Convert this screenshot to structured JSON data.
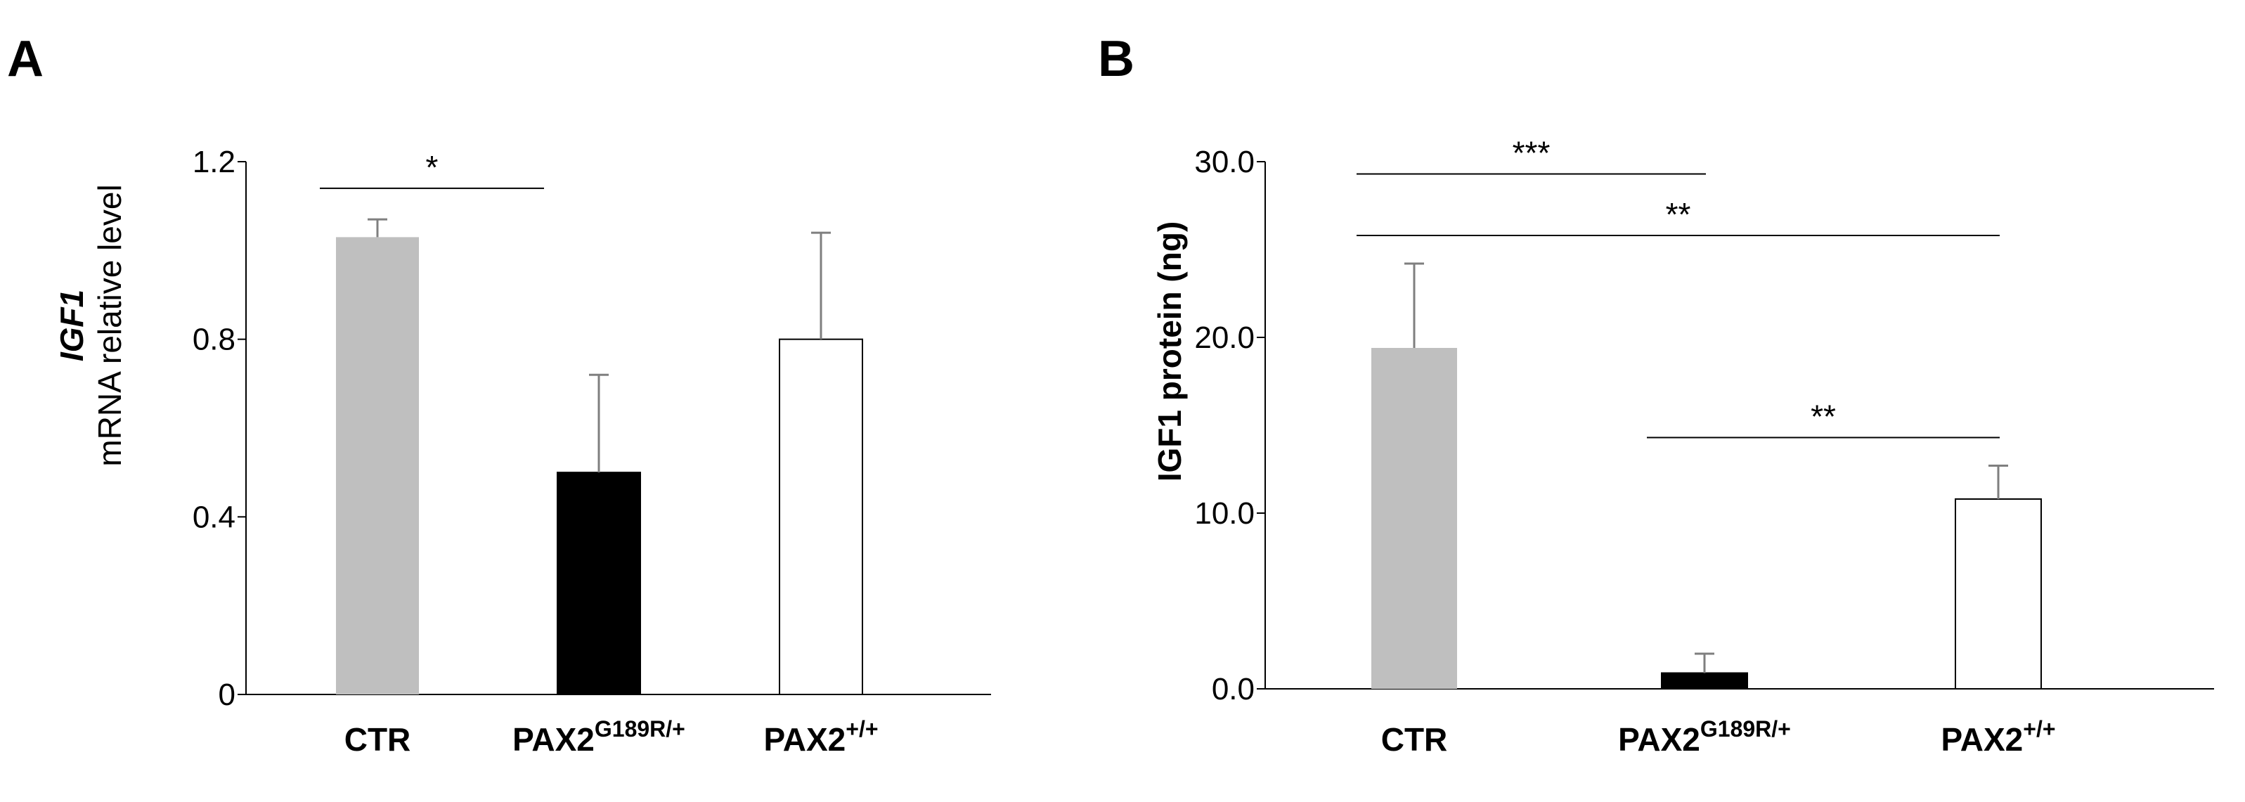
{
  "chart_data": [
    {
      "panel": "A",
      "type": "bar",
      "categories": [
        {
          "main": "CTR",
          "sup": ""
        },
        {
          "main": "PAX2",
          "sup": "G189R/+"
        },
        {
          "main": "PAX2",
          "sup": "+/+"
        }
      ],
      "values": [
        1.03,
        0.5,
        0.8
      ],
      "errors": [
        0.04,
        0.22,
        0.24
      ],
      "colors": [
        "#bfbfbf",
        "#000000",
        "#ffffff"
      ],
      "ylabel_italic": "IGF1",
      "ylabel": "mRNA relative level",
      "ylim": [
        0,
        1.2
      ],
      "yticks": [
        "0",
        "0.4",
        "0.8",
        "1.2"
      ],
      "yticks_values": [
        0,
        0.4,
        0.8,
        1.2
      ],
      "significance": [
        {
          "from": 0,
          "to": 1,
          "y": 1.14,
          "label": "*"
        }
      ]
    },
    {
      "panel": "B",
      "type": "bar",
      "categories": [
        {
          "main": "CTR",
          "sup": ""
        },
        {
          "main": "PAX2",
          "sup": "G189R/+"
        },
        {
          "main": "PAX2",
          "sup": "+/+"
        }
      ],
      "values": [
        19.4,
        0.9,
        10.8
      ],
      "errors": [
        4.8,
        1.1,
        1.9
      ],
      "colors": [
        "#bfbfbf",
        "#000000",
        "#ffffff"
      ],
      "ylabel": "IGF1 protein (ng)",
      "ylim": [
        0,
        30
      ],
      "yticks": [
        "0.0",
        "10.0",
        "20.0",
        "30.0"
      ],
      "yticks_values": [
        0,
        10,
        20,
        30
      ],
      "significance": [
        {
          "from": 0,
          "to": 1,
          "y": 29.3,
          "label": "***"
        },
        {
          "from": 0,
          "to": 2,
          "y": 25.8,
          "label": "**"
        },
        {
          "from": 1,
          "to": 2,
          "y": 14.3,
          "label": "**"
        }
      ]
    }
  ]
}
